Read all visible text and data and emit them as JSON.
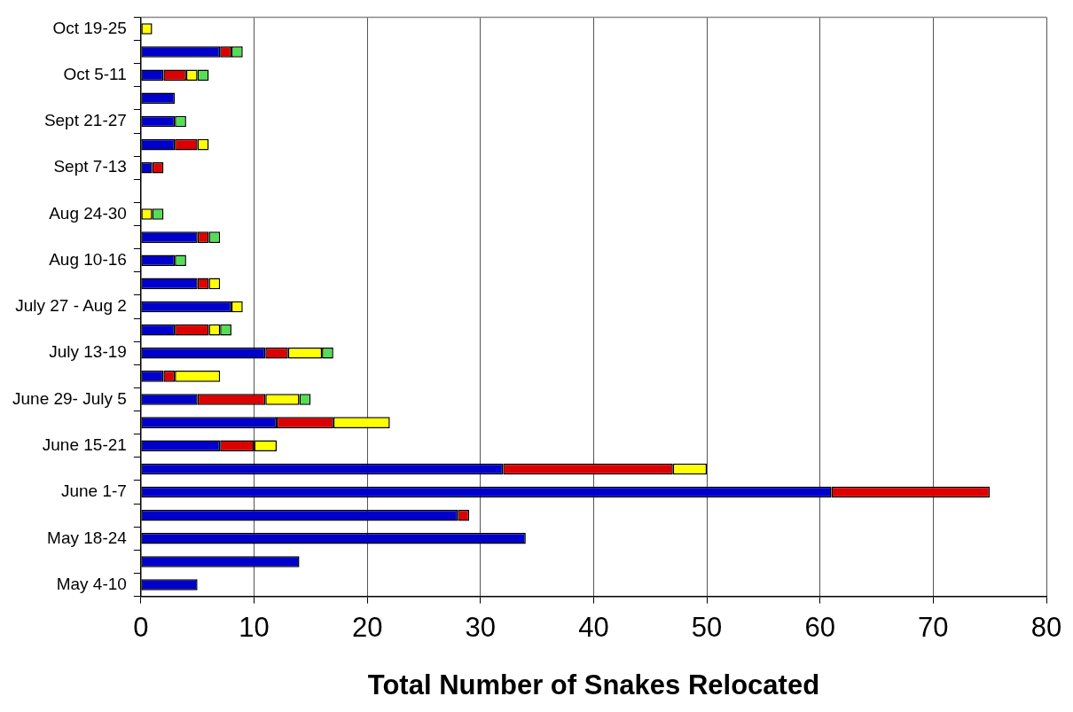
{
  "chart_data": {
    "type": "bar",
    "orientation": "horizontal",
    "stacked": true,
    "xlabel": "Total Number of Snakes Relocated",
    "categories": [
      "Oct 19-25",
      null,
      "Oct 5-11",
      null,
      "Sept 21-27",
      null,
      "Sept 7-13",
      null,
      "Aug 24-30",
      null,
      "Aug 10-16",
      null,
      "July 27 - Aug 2",
      null,
      "July 13-19",
      null,
      "June 29- July 5",
      null,
      "June 15-21",
      null,
      "June 1-7",
      null,
      "May 18-24",
      null,
      "May 4-10"
    ],
    "series": [
      {
        "color": "#0000cc",
        "values": [
          null,
          7,
          2,
          3,
          3,
          3,
          1,
          null,
          null,
          5,
          3,
          5,
          8,
          3,
          11,
          2,
          5,
          12,
          7,
          32,
          61,
          28,
          34,
          14,
          5
        ]
      },
      {
        "color": "#dd0000",
        "values": [
          null,
          1,
          2,
          null,
          null,
          2,
          1,
          null,
          null,
          1,
          null,
          1,
          null,
          3,
          2,
          1,
          6,
          5,
          3,
          15,
          14,
          1,
          null,
          null,
          null
        ]
      },
      {
        "color": "#ffff00",
        "values": [
          1,
          null,
          1,
          null,
          null,
          1,
          null,
          null,
          1,
          null,
          null,
          1,
          1,
          1,
          3,
          4,
          3,
          5,
          2,
          3,
          null,
          null,
          null,
          null,
          null
        ]
      },
      {
        "color": "#55dd55",
        "values": [
          null,
          1,
          1,
          null,
          1,
          null,
          null,
          null,
          1,
          1,
          1,
          null,
          null,
          1,
          1,
          null,
          1,
          null,
          null,
          null,
          null,
          null,
          null,
          null,
          null
        ]
      }
    ],
    "xlim": [
      0,
      80
    ],
    "xticks": [
      0,
      10,
      20,
      30,
      40,
      50,
      60,
      70,
      80
    ],
    "grid": "x",
    "legend": false
  }
}
